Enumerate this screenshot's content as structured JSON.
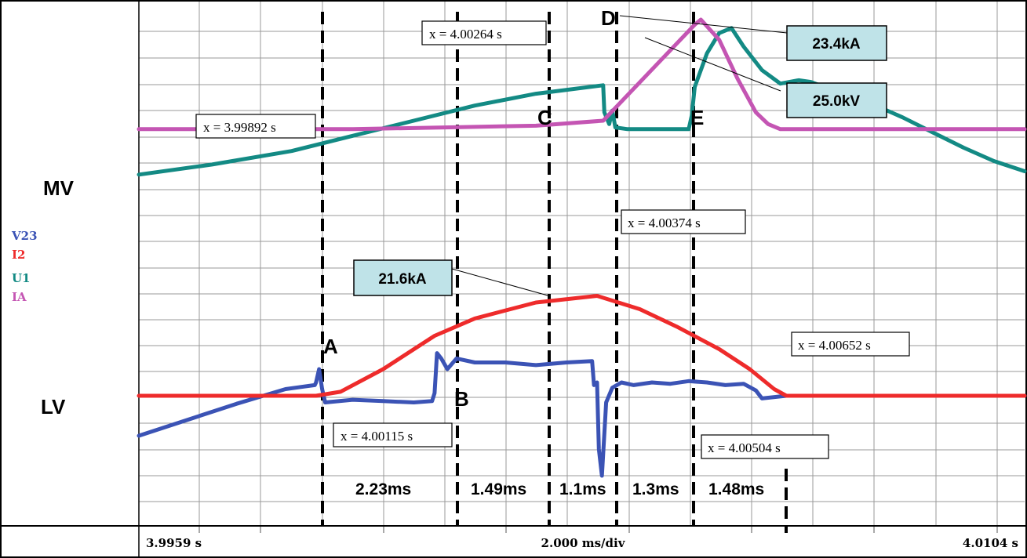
{
  "chart_data": {
    "type": "line",
    "x_unit": "ms",
    "xlim": [
      0,
      14.5
    ],
    "panels": [
      {
        "name": "MV",
        "series": [
          {
            "name": "U1",
            "color": "#138a84",
            "x": [
              0,
              1.2,
              2.5,
              3.5,
              4.5,
              5.5,
              6.5,
              7.6,
              7.62,
              7.7,
              7.75,
              7.8,
              8.0,
              8.5,
              9.0,
              9.05,
              9.1,
              9.3,
              9.5,
              9.7,
              9.9,
              10.2,
              10.5,
              10.8,
              11.0,
              11.3,
              11.6,
              12.0,
              12.5,
              13.0,
              13.5,
              14.0,
              14.5
            ],
            "y": [
              0.08,
              0.14,
              0.22,
              0.31,
              0.4,
              0.49,
              0.56,
              0.61,
              0.45,
              0.38,
              0.46,
              0.36,
              0.35,
              0.35,
              0.35,
              0.43,
              0.6,
              0.8,
              0.92,
              0.95,
              0.84,
              0.7,
              0.62,
              0.64,
              0.63,
              0.59,
              0.55,
              0.5,
              0.42,
              0.33,
              0.24,
              0.16,
              0.1
            ]
          },
          {
            "name": "IA",
            "color": "#c455b3",
            "x": [
              0,
              3.5,
              5.0,
              6.5,
              7.6,
              8.6,
              9.1,
              9.2,
              9.5,
              9.8,
              10.1,
              10.3,
              10.5,
              11.0,
              14.5
            ],
            "y": [
              0.35,
              0.35,
              0.36,
              0.37,
              0.4,
              0.78,
              0.97,
              1.0,
              0.88,
              0.65,
              0.45,
              0.38,
              0.35,
              0.35,
              0.35
            ]
          }
        ]
      },
      {
        "name": "LV",
        "series": [
          {
            "name": "V23",
            "color": "#3b53b5",
            "x": [
              0,
              0.8,
              1.6,
              2.4,
              2.88,
              2.9,
              2.95,
              3.0,
              3.05,
              3.5,
              4.0,
              4.5,
              4.8,
              4.84,
              4.88,
              4.95,
              5.05,
              5.2,
              5.5,
              6.0,
              6.5,
              7.0,
              7.42,
              7.45,
              7.5,
              7.53,
              7.58,
              7.65,
              7.75,
              7.9,
              8.1,
              8.4,
              8.7,
              9.0,
              9.3,
              9.6,
              9.9,
              10.1,
              10.2,
              10.6,
              11.0,
              14.5
            ],
            "y": [
              -0.3,
              -0.18,
              -0.06,
              0.05,
              0.08,
              0.1,
              0.2,
              0.05,
              -0.05,
              -0.03,
              -0.04,
              -0.05,
              -0.04,
              0.02,
              0.32,
              0.28,
              0.2,
              0.28,
              0.25,
              0.25,
              0.23,
              0.25,
              0.26,
              0.08,
              0.1,
              -0.4,
              -0.6,
              -0.05,
              0.06,
              0.1,
              0.08,
              0.1,
              0.09,
              0.11,
              0.1,
              0.08,
              0.09,
              0.04,
              -0.02,
              0.0,
              0.0,
              0.0
            ]
          },
          {
            "name": "I2",
            "color": "#ee2b2b",
            "x": [
              0,
              2.9,
              3.3,
              4.0,
              4.84,
              5.5,
              6.5,
              7.5,
              8.2,
              8.8,
              9.5,
              10.0,
              10.4,
              10.6,
              14.5
            ],
            "y": [
              0.0,
              0.0,
              0.03,
              0.2,
              0.45,
              0.58,
              0.7,
              0.75,
              0.65,
              0.52,
              0.35,
              0.2,
              0.05,
              0.0,
              0.0
            ]
          }
        ]
      }
    ],
    "cursors": [
      {
        "label": "x =  3.99892  s"
      },
      {
        "label": "x =  4.00115  s"
      },
      {
        "label": "x =  4.00264  s"
      },
      {
        "label": "x =  4.00374  s"
      },
      {
        "label": "x =  4.00504  s"
      },
      {
        "label": "x =  4.00652  s"
      }
    ],
    "points": [
      "A",
      "B",
      "C",
      "D",
      "E"
    ],
    "durations": [
      "2.23ms",
      "1.49ms",
      "1.1ms",
      "1.3ms",
      "1.48ms"
    ],
    "peaks": [
      "23.4kA",
      "25.0kV",
      "21.6kA"
    ],
    "axis": {
      "start": "3.9959 s",
      "scale": "2.000 ms/div",
      "end": "4.0104 s"
    },
    "channel_labels": [
      "MV",
      "LV"
    ],
    "legend": [
      {
        "name": "V23",
        "color": "#3b53b5"
      },
      {
        "name": "I2",
        "color": "#ee2b2b"
      },
      {
        "name": "U1",
        "color": "#138a84"
      },
      {
        "name": "IA",
        "color": "#c455b3"
      }
    ],
    "grid": true
  }
}
